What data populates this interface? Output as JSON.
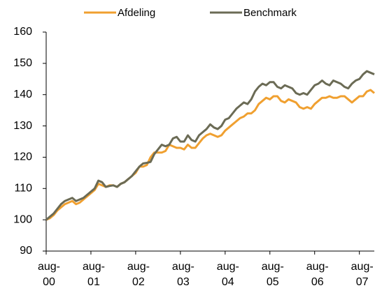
{
  "chart_data": {
    "type": "line",
    "categories": [
      "aug-00",
      null,
      null,
      null,
      null,
      null,
      null,
      null,
      null,
      null,
      null,
      null,
      "aug-01",
      null,
      null,
      null,
      null,
      null,
      null,
      null,
      null,
      null,
      null,
      null,
      "aug-02",
      null,
      null,
      null,
      null,
      null,
      null,
      null,
      null,
      null,
      null,
      null,
      "aug-03",
      null,
      null,
      null,
      null,
      null,
      null,
      null,
      null,
      null,
      null,
      null,
      "aug-04",
      null,
      null,
      null,
      null,
      null,
      null,
      null,
      null,
      null,
      null,
      null,
      "aug-05",
      null,
      null,
      null,
      null,
      null,
      null,
      null,
      null,
      null,
      null,
      null,
      "aug-06",
      null,
      null,
      null,
      null,
      null,
      null,
      null,
      null,
      null,
      null,
      null,
      "aug-07",
      null,
      null,
      null,
      null
    ],
    "series": [
      {
        "name": "Afdeling",
        "color": "#f0a030",
        "values": [
          100,
          100.5,
          101.5,
          103,
          104,
          105,
          105.5,
          106,
          105,
          105.5,
          106.5,
          107.5,
          108.5,
          109.5,
          111.5,
          111,
          110.5,
          111,
          111,
          110.5,
          111.5,
          112,
          113,
          114,
          115,
          117,
          117,
          117.5,
          120,
          121.5,
          121.5,
          121.5,
          122,
          124,
          123.5,
          123,
          123,
          122.5,
          124,
          123,
          123,
          124.5,
          126,
          127,
          127.5,
          127,
          126.5,
          127,
          128.5,
          129.5,
          130.5,
          131.5,
          132.5,
          133,
          134,
          134,
          135,
          137,
          138,
          139,
          138.5,
          139.5,
          139.5,
          138,
          137.5,
          138.5,
          138,
          137.5,
          136,
          135.5,
          136,
          135.5,
          137,
          138,
          139,
          139,
          139.5,
          139,
          139,
          139.5,
          139.5,
          138.5,
          137.5,
          138.5,
          139.5,
          139.5,
          141,
          141.5,
          140.5
        ]
      },
      {
        "name": "Benchmark",
        "color": "#6b6b55",
        "values": [
          100,
          101,
          102,
          103.5,
          105,
          106,
          106.5,
          107,
          106,
          106.5,
          107,
          108,
          109,
          110,
          112.5,
          112,
          110.5,
          110.8,
          111,
          110.5,
          111.5,
          112,
          113,
          114,
          115.5,
          117,
          118,
          118.2,
          118.5,
          121,
          122.5,
          124,
          123.5,
          124,
          126,
          126.5,
          125,
          125,
          127,
          125.5,
          125,
          127,
          128,
          129,
          130.5,
          129.5,
          129,
          130,
          132,
          132.5,
          134,
          135.5,
          136.5,
          137.5,
          137,
          138.5,
          141,
          142.5,
          143.5,
          143,
          144,
          144,
          142.5,
          142,
          143,
          142.5,
          142,
          140.5,
          140,
          140.5,
          140,
          141.5,
          143,
          143.5,
          144.5,
          143.5,
          143,
          144.5,
          144,
          143.5,
          142.5,
          142,
          143.5,
          144.5,
          145,
          146.5,
          147.5,
          147,
          146.5
        ]
      }
    ],
    "ylim": [
      90,
      160
    ],
    "yticks": [
      90,
      100,
      110,
      120,
      130,
      140,
      150,
      160
    ],
    "grid": false,
    "legend": "top"
  }
}
